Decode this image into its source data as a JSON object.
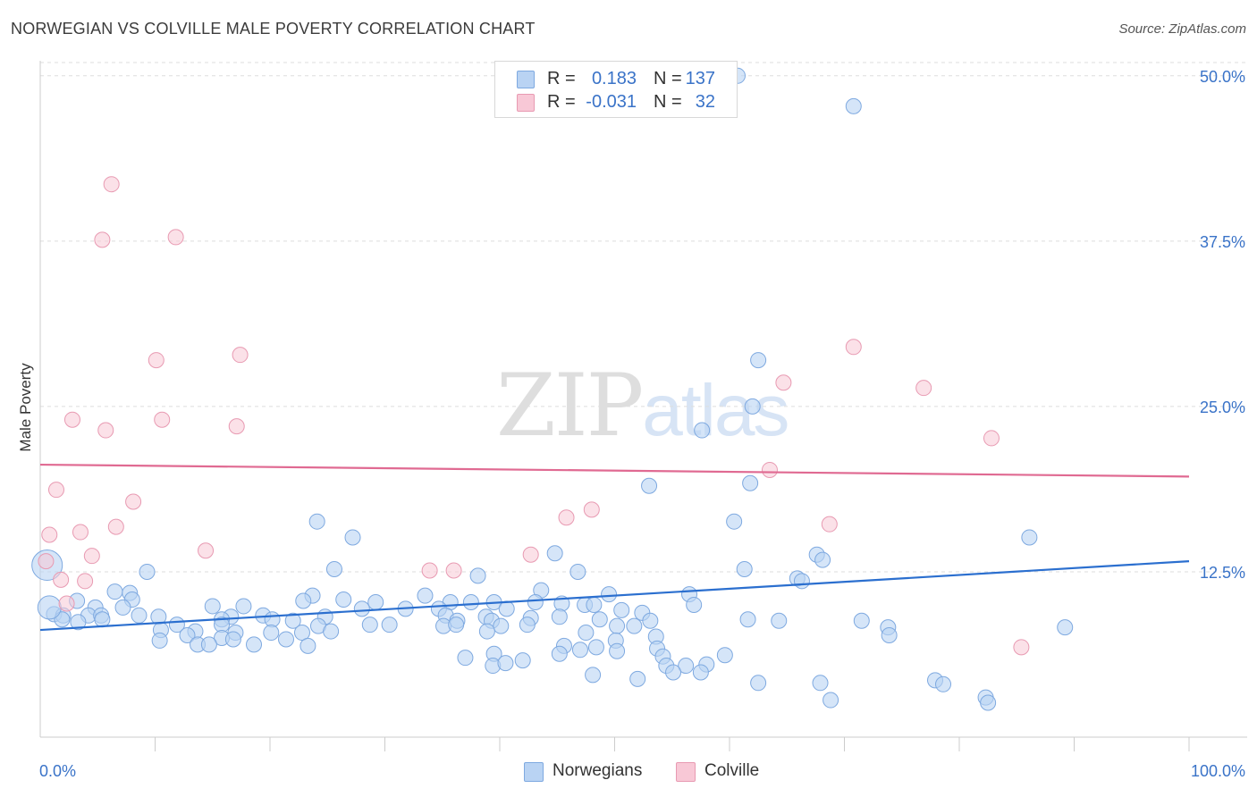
{
  "title": "NORWEGIAN VS COLVILLE MALE POVERTY CORRELATION CHART",
  "source": "Source: ZipAtlas.com",
  "watermark": {
    "zip": "ZIP",
    "atlas": "atlas"
  },
  "legend": {
    "rows": [
      {
        "r_label": "R =",
        "r_value": "0.183",
        "n_label": "N =",
        "n_value": "137"
      },
      {
        "r_label": "R =",
        "r_value": "-0.031",
        "n_label": "N =",
        "n_value": "32"
      }
    ]
  },
  "bottom_legend": [
    "Norwegians",
    "Colville"
  ],
  "colors": {
    "blue_fill": "#b9d3f3",
    "blue_stroke": "#7ea9e0",
    "blue_line": "#2b6fcf",
    "pink_fill": "#f8c8d6",
    "pink_stroke": "#e89ab2",
    "pink_line": "#e06a92",
    "tick_label": "#3a73c8",
    "grid": "#dddddd"
  },
  "chart_data": {
    "type": "scatter",
    "title": "NORWEGIAN VS COLVILLE MALE POVERTY CORRELATION CHART",
    "xlabel": "",
    "ylabel": "Male Poverty",
    "xlim": [
      0,
      100
    ],
    "ylim": [
      0,
      51
    ],
    "x_tick_labels": [
      "0.0%",
      "100.0%"
    ],
    "y_ticks": [
      12.5,
      25.0,
      37.5,
      50.0
    ],
    "y_tick_labels": [
      "12.5%",
      "25.0%",
      "37.5%",
      "50.0%"
    ],
    "legend_position": "top-center",
    "series": [
      {
        "name": "Norwegians",
        "r": 0.183,
        "n": 137,
        "trend": {
          "x0": 0,
          "y0": 8.1,
          "x1": 100,
          "y1": 13.3
        },
        "points": [
          [
            60.7,
            50.0
          ],
          [
            70.8,
            47.7
          ],
          [
            62.5,
            28.5
          ],
          [
            62.0,
            25.0
          ],
          [
            57.6,
            23.2
          ],
          [
            53.0,
            19.0
          ],
          [
            61.8,
            19.2
          ],
          [
            60.4,
            16.3
          ],
          [
            24.1,
            16.3
          ],
          [
            27.2,
            15.1
          ],
          [
            86.1,
            15.1
          ],
          [
            44.8,
            13.9
          ],
          [
            67.6,
            13.8
          ],
          [
            68.1,
            13.4
          ],
          [
            25.6,
            12.7
          ],
          [
            61.3,
            12.7
          ],
          [
            46.8,
            12.5
          ],
          [
            9.3,
            12.5
          ],
          [
            38.1,
            12.2
          ],
          [
            65.9,
            12.0
          ],
          [
            66.3,
            11.8
          ],
          [
            43.6,
            11.1
          ],
          [
            56.5,
            10.8
          ],
          [
            49.5,
            10.8
          ],
          [
            6.5,
            11.0
          ],
          [
            7.8,
            10.9
          ],
          [
            33.5,
            10.7
          ],
          [
            23.7,
            10.7
          ],
          [
            26.4,
            10.4
          ],
          [
            3.2,
            10.3
          ],
          [
            8.0,
            10.4
          ],
          [
            22.9,
            10.3
          ],
          [
            29.2,
            10.2
          ],
          [
            35.7,
            10.2
          ],
          [
            37.5,
            10.2
          ],
          [
            39.5,
            10.2
          ],
          [
            43.1,
            10.2
          ],
          [
            45.4,
            10.1
          ],
          [
            47.4,
            10.0
          ],
          [
            48.2,
            10.0
          ],
          [
            56.9,
            10.0
          ],
          [
            15.0,
            9.9
          ],
          [
            17.7,
            9.9
          ],
          [
            4.8,
            9.8
          ],
          [
            7.2,
            9.8
          ],
          [
            28.0,
            9.7
          ],
          [
            31.8,
            9.7
          ],
          [
            34.7,
            9.7
          ],
          [
            40.6,
            9.7
          ],
          [
            50.6,
            9.6
          ],
          [
            52.4,
            9.4
          ],
          [
            1.2,
            9.3
          ],
          [
            2.0,
            9.2
          ],
          [
            4.2,
            9.2
          ],
          [
            5.3,
            9.2
          ],
          [
            8.6,
            9.2
          ],
          [
            10.3,
            9.1
          ],
          [
            16.6,
            9.1
          ],
          [
            19.4,
            9.2
          ],
          [
            24.8,
            9.1
          ],
          [
            35.3,
            9.2
          ],
          [
            38.8,
            9.1
          ],
          [
            42.7,
            9.0
          ],
          [
            45.2,
            9.1
          ],
          [
            1.9,
            8.9
          ],
          [
            5.4,
            8.9
          ],
          [
            15.8,
            8.9
          ],
          [
            20.2,
            8.9
          ],
          [
            22.0,
            8.8
          ],
          [
            36.3,
            8.8
          ],
          [
            39.3,
            8.8
          ],
          [
            48.7,
            8.9
          ],
          [
            53.1,
            8.8
          ],
          [
            61.6,
            8.9
          ],
          [
            64.3,
            8.8
          ],
          [
            71.5,
            8.8
          ],
          [
            3.3,
            8.7
          ],
          [
            11.9,
            8.5
          ],
          [
            15.8,
            8.5
          ],
          [
            24.2,
            8.4
          ],
          [
            28.7,
            8.5
          ],
          [
            30.4,
            8.5
          ],
          [
            35.1,
            8.4
          ],
          [
            36.2,
            8.5
          ],
          [
            40.1,
            8.4
          ],
          [
            42.4,
            8.5
          ],
          [
            50.2,
            8.4
          ],
          [
            51.7,
            8.4
          ],
          [
            73.8,
            8.3
          ],
          [
            89.2,
            8.3
          ],
          [
            10.5,
            8.1
          ],
          [
            13.5,
            8.0
          ],
          [
            17.0,
            7.9
          ],
          [
            20.1,
            7.9
          ],
          [
            22.8,
            7.9
          ],
          [
            25.3,
            8.0
          ],
          [
            38.9,
            8.0
          ],
          [
            47.5,
            7.9
          ],
          [
            53.6,
            7.6
          ],
          [
            73.9,
            7.7
          ],
          [
            12.8,
            7.7
          ],
          [
            15.8,
            7.5
          ],
          [
            16.8,
            7.4
          ],
          [
            10.4,
            7.3
          ],
          [
            21.4,
            7.4
          ],
          [
            50.1,
            7.3
          ],
          [
            13.7,
            7.0
          ],
          [
            14.7,
            7.0
          ],
          [
            18.6,
            7.0
          ],
          [
            23.3,
            6.9
          ],
          [
            45.6,
            6.9
          ],
          [
            48.4,
            6.8
          ],
          [
            50.2,
            6.5
          ],
          [
            45.2,
            6.3
          ],
          [
            37.0,
            6.0
          ],
          [
            39.5,
            6.3
          ],
          [
            47.0,
            6.6
          ],
          [
            53.7,
            6.7
          ],
          [
            54.2,
            6.1
          ],
          [
            42.0,
            5.8
          ],
          [
            39.4,
            5.4
          ],
          [
            40.5,
            5.6
          ],
          [
            59.6,
            6.2
          ],
          [
            54.5,
            5.4
          ],
          [
            56.2,
            5.4
          ],
          [
            58.0,
            5.5
          ],
          [
            55.1,
            4.9
          ],
          [
            57.5,
            4.9
          ],
          [
            48.1,
            4.7
          ],
          [
            52.0,
            4.4
          ],
          [
            77.9,
            4.3
          ],
          [
            67.9,
            4.1
          ],
          [
            62.5,
            4.1
          ],
          [
            78.6,
            4.0
          ],
          [
            82.3,
            3.0
          ],
          [
            82.5,
            2.6
          ],
          [
            68.8,
            2.8
          ]
        ]
      },
      {
        "name": "Colville",
        "r": -0.031,
        "n": 32,
        "trend": {
          "x0": 0,
          "y0": 20.6,
          "x1": 100,
          "y1": 19.7
        },
        "points": [
          [
            6.2,
            41.8
          ],
          [
            5.4,
            37.6
          ],
          [
            11.8,
            37.8
          ],
          [
            10.1,
            28.5
          ],
          [
            17.4,
            28.9
          ],
          [
            70.8,
            29.5
          ],
          [
            64.7,
            26.8
          ],
          [
            76.9,
            26.4
          ],
          [
            2.8,
            24.0
          ],
          [
            10.6,
            24.0
          ],
          [
            5.7,
            23.2
          ],
          [
            17.1,
            23.5
          ],
          [
            82.8,
            22.6
          ],
          [
            63.5,
            20.2
          ],
          [
            1.4,
            18.7
          ],
          [
            8.1,
            17.8
          ],
          [
            48.0,
            17.2
          ],
          [
            45.8,
            16.6
          ],
          [
            6.6,
            15.9
          ],
          [
            68.7,
            16.1
          ],
          [
            0.8,
            15.3
          ],
          [
            3.5,
            15.5
          ],
          [
            14.4,
            14.1
          ],
          [
            4.5,
            13.7
          ],
          [
            42.7,
            13.8
          ],
          [
            0.5,
            13.3
          ],
          [
            33.9,
            12.6
          ],
          [
            36.0,
            12.6
          ],
          [
            1.8,
            11.9
          ],
          [
            3.9,
            11.8
          ],
          [
            2.3,
            10.1
          ],
          [
            85.4,
            6.8
          ]
        ]
      }
    ]
  }
}
